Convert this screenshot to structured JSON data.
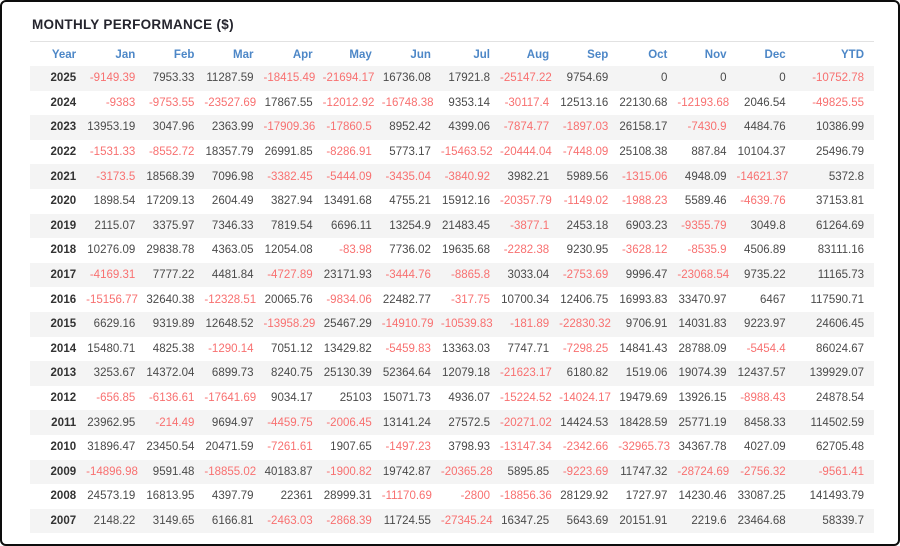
{
  "title": "MONTHLY PERFORMANCE ($)",
  "colors": {
    "header_text": "#4d87c7",
    "negative_value": "#f87070",
    "positive_value": "#4a4a4a",
    "stripe_background": "#f4f4f4",
    "outer_border": "#0d0d0d"
  },
  "table": {
    "columns": [
      "Year",
      "Jan",
      "Feb",
      "Mar",
      "Apr",
      "May",
      "Jun",
      "Jul",
      "Aug",
      "Sep",
      "Oct",
      "Nov",
      "Dec",
      "YTD"
    ],
    "rows": [
      {
        "year": "2025",
        "values": [
          "-9149.39",
          "7953.33",
          "11287.59",
          "-18415.49",
          "-21694.17",
          "16736.08",
          "17921.8",
          "-25147.22",
          "9754.69",
          "0",
          "0",
          "0",
          "-10752.78"
        ]
      },
      {
        "year": "2024",
        "values": [
          "-9383",
          "-9753.55",
          "-23527.69",
          "17867.55",
          "-12012.92",
          "-16748.38",
          "9353.14",
          "-30117.4",
          "12513.16",
          "22130.68",
          "-12193.68",
          "2046.54",
          "-49825.55"
        ]
      },
      {
        "year": "2023",
        "values": [
          "13953.19",
          "3047.96",
          "2363.99",
          "-17909.36",
          "-17860.5",
          "8952.42",
          "4399.06",
          "-7874.77",
          "-1897.03",
          "26158.17",
          "-7430.9",
          "4484.76",
          "10386.99"
        ]
      },
      {
        "year": "2022",
        "values": [
          "-1531.33",
          "-8552.72",
          "18357.79",
          "26991.85",
          "-8286.91",
          "5773.17",
          "-15463.52",
          "-20444.04",
          "-7448.09",
          "25108.38",
          "887.84",
          "10104.37",
          "25496.79"
        ]
      },
      {
        "year": "2021",
        "values": [
          "-3173.5",
          "18568.39",
          "7096.98",
          "-3382.45",
          "-5444.09",
          "-3435.04",
          "-3840.92",
          "3982.21",
          "5989.56",
          "-1315.06",
          "4948.09",
          "-14621.37",
          "5372.8"
        ]
      },
      {
        "year": "2020",
        "values": [
          "1898.54",
          "17209.13",
          "2604.49",
          "3827.94",
          "13491.68",
          "4755.21",
          "15912.16",
          "-20357.79",
          "-1149.02",
          "-1988.23",
          "5589.46",
          "-4639.76",
          "37153.81"
        ]
      },
      {
        "year": "2019",
        "values": [
          "2115.07",
          "3375.97",
          "7346.33",
          "7819.54",
          "6696.11",
          "13254.9",
          "21483.45",
          "-3877.1",
          "2453.18",
          "6903.23",
          "-9355.79",
          "3049.8",
          "61264.69"
        ]
      },
      {
        "year": "2018",
        "values": [
          "10276.09",
          "29838.78",
          "4363.05",
          "12054.08",
          "-83.98",
          "7736.02",
          "19635.68",
          "-2282.38",
          "9230.95",
          "-3628.12",
          "-8535.9",
          "4506.89",
          "83111.16"
        ]
      },
      {
        "year": "2017",
        "values": [
          "-4169.31",
          "7777.22",
          "4481.84",
          "-4727.89",
          "23171.93",
          "-3444.76",
          "-8865.8",
          "3033.04",
          "-2753.69",
          "9996.47",
          "-23068.54",
          "9735.22",
          "11165.73"
        ]
      },
      {
        "year": "2016",
        "values": [
          "-15156.77",
          "32640.38",
          "-12328.51",
          "20065.76",
          "-9834.06",
          "22482.77",
          "-317.75",
          "10700.34",
          "12406.75",
          "16993.83",
          "33470.97",
          "6467",
          "117590.71"
        ]
      },
      {
        "year": "2015",
        "values": [
          "6629.16",
          "9319.89",
          "12648.52",
          "-13958.29",
          "25467.29",
          "-14910.79",
          "-10539.83",
          "-181.89",
          "-22830.32",
          "9706.91",
          "14031.83",
          "9223.97",
          "24606.45"
        ]
      },
      {
        "year": "2014",
        "values": [
          "15480.71",
          "4825.38",
          "-1290.14",
          "7051.12",
          "13429.82",
          "-5459.83",
          "13363.03",
          "7747.71",
          "-7298.25",
          "14841.43",
          "28788.09",
          "-5454.4",
          "86024.67"
        ]
      },
      {
        "year": "2013",
        "values": [
          "3253.67",
          "14372.04",
          "6899.73",
          "8240.75",
          "25130.39",
          "52364.64",
          "12079.18",
          "-21623.17",
          "6180.82",
          "1519.06",
          "19074.39",
          "12437.57",
          "139929.07"
        ]
      },
      {
        "year": "2012",
        "values": [
          "-656.85",
          "-6136.61",
          "-17641.69",
          "9034.17",
          "25103",
          "15071.73",
          "4936.07",
          "-15224.52",
          "-14024.17",
          "19479.69",
          "13926.15",
          "-8988.43",
          "24878.54"
        ]
      },
      {
        "year": "2011",
        "values": [
          "23962.95",
          "-214.49",
          "9694.97",
          "-4459.75",
          "-2006.45",
          "13141.24",
          "27572.5",
          "-20271.02",
          "14424.53",
          "18428.59",
          "25771.19",
          "8458.33",
          "114502.59"
        ]
      },
      {
        "year": "2010",
        "values": [
          "31896.47",
          "23450.54",
          "20471.59",
          "-7261.61",
          "1907.65",
          "-1497.23",
          "3798.93",
          "-13147.34",
          "-2342.66",
          "-32965.73",
          "34367.78",
          "4027.09",
          "62705.48"
        ]
      },
      {
        "year": "2009",
        "values": [
          "-14896.98",
          "9591.48",
          "-18855.02",
          "40183.87",
          "-1900.82",
          "19742.87",
          "-20365.28",
          "5895.85",
          "-9223.69",
          "11747.32",
          "-28724.69",
          "-2756.32",
          "-9561.41"
        ]
      },
      {
        "year": "2008",
        "values": [
          "24573.19",
          "16813.95",
          "4397.79",
          "22361",
          "28999.31",
          "-11170.69",
          "-2800",
          "-18856.36",
          "28129.92",
          "1727.97",
          "14230.46",
          "33087.25",
          "141493.79"
        ]
      },
      {
        "year": "2007",
        "values": [
          "2148.22",
          "3149.65",
          "6166.81",
          "-2463.03",
          "-2868.39",
          "11724.55",
          "-27345.24",
          "16347.25",
          "5643.69",
          "20151.91",
          "2219.6",
          "23464.68",
          "58339.7"
        ]
      }
    ]
  }
}
